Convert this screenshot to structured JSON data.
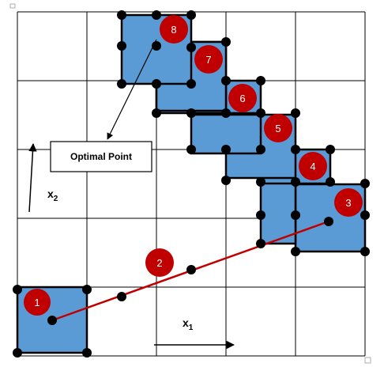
{
  "colors": {
    "grid_line": "#000000",
    "cell_fill": "#5b9bd5",
    "cell_border": "#000000",
    "node": "#000000",
    "marker_fill": "#c00000",
    "marker_text": "#ffffff",
    "path_line": "#c00000",
    "arrow": "#000000"
  },
  "callout": {
    "label": "Optimal Point"
  },
  "axes": {
    "x": {
      "label": "x",
      "subscript": "1"
    },
    "y": {
      "label": "x",
      "subscript": "2"
    }
  },
  "markers": [
    {
      "label": "1"
    },
    {
      "label": "2"
    },
    {
      "label": "3"
    },
    {
      "label": "4"
    },
    {
      "label": "5"
    },
    {
      "label": "6"
    },
    {
      "label": "7"
    },
    {
      "label": "8"
    }
  ]
}
